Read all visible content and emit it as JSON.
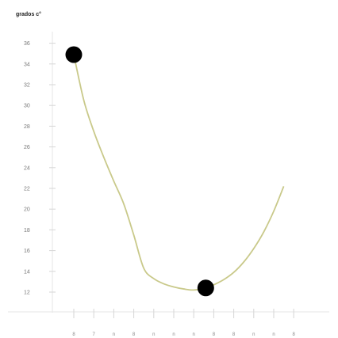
{
  "chart_data": {
    "type": "line",
    "ylabel": "grados c°",
    "xlabel": "",
    "title": "",
    "yticks": [
      12,
      14,
      16,
      18,
      20,
      22,
      24,
      26,
      28,
      30,
      32,
      34,
      36
    ],
    "ytick_labels": [
      "12",
      "14",
      "16",
      "18",
      "20",
      "22",
      "24",
      "26",
      "28",
      "30",
      "32",
      "34",
      "36"
    ],
    "ylim": [
      11,
      37
    ],
    "xtick_labels": [
      "8",
      "7",
      "n",
      "8",
      "n",
      "n",
      "n",
      "8",
      "8",
      "n",
      "n",
      "8"
    ],
    "grid": false,
    "legend": "none",
    "series": [
      {
        "color": "#c9c98a",
        "points": [
          {
            "x": 1.0,
            "y": 34.9
          },
          {
            "x": 1.5,
            "y": 30.5
          },
          {
            "x": 2.0,
            "y": 27.5
          },
          {
            "x": 2.5,
            "y": 25.0
          },
          {
            "x": 3.0,
            "y": 22.7
          },
          {
            "x": 3.5,
            "y": 20.5
          },
          {
            "x": 4.0,
            "y": 17.5
          },
          {
            "x": 4.5,
            "y": 14.3
          },
          {
            "x": 5.0,
            "y": 13.3
          },
          {
            "x": 5.5,
            "y": 12.8
          },
          {
            "x": 6.0,
            "y": 12.5
          },
          {
            "x": 6.5,
            "y": 12.3
          },
          {
            "x": 7.0,
            "y": 12.2
          },
          {
            "x": 7.6,
            "y": 12.4
          },
          {
            "x": 8.0,
            "y": 12.7
          },
          {
            "x": 8.5,
            "y": 13.2
          },
          {
            "x": 9.0,
            "y": 13.9
          },
          {
            "x": 9.5,
            "y": 14.9
          },
          {
            "x": 10.0,
            "y": 16.2
          },
          {
            "x": 10.5,
            "y": 17.8
          },
          {
            "x": 11.0,
            "y": 19.8
          },
          {
            "x": 11.5,
            "y": 22.2
          }
        ]
      }
    ],
    "highlighted_points": [
      {
        "x": 1.0,
        "y": 34.9,
        "color": "#000000"
      },
      {
        "x": 7.6,
        "y": 12.4,
        "color": "#000000"
      }
    ]
  }
}
